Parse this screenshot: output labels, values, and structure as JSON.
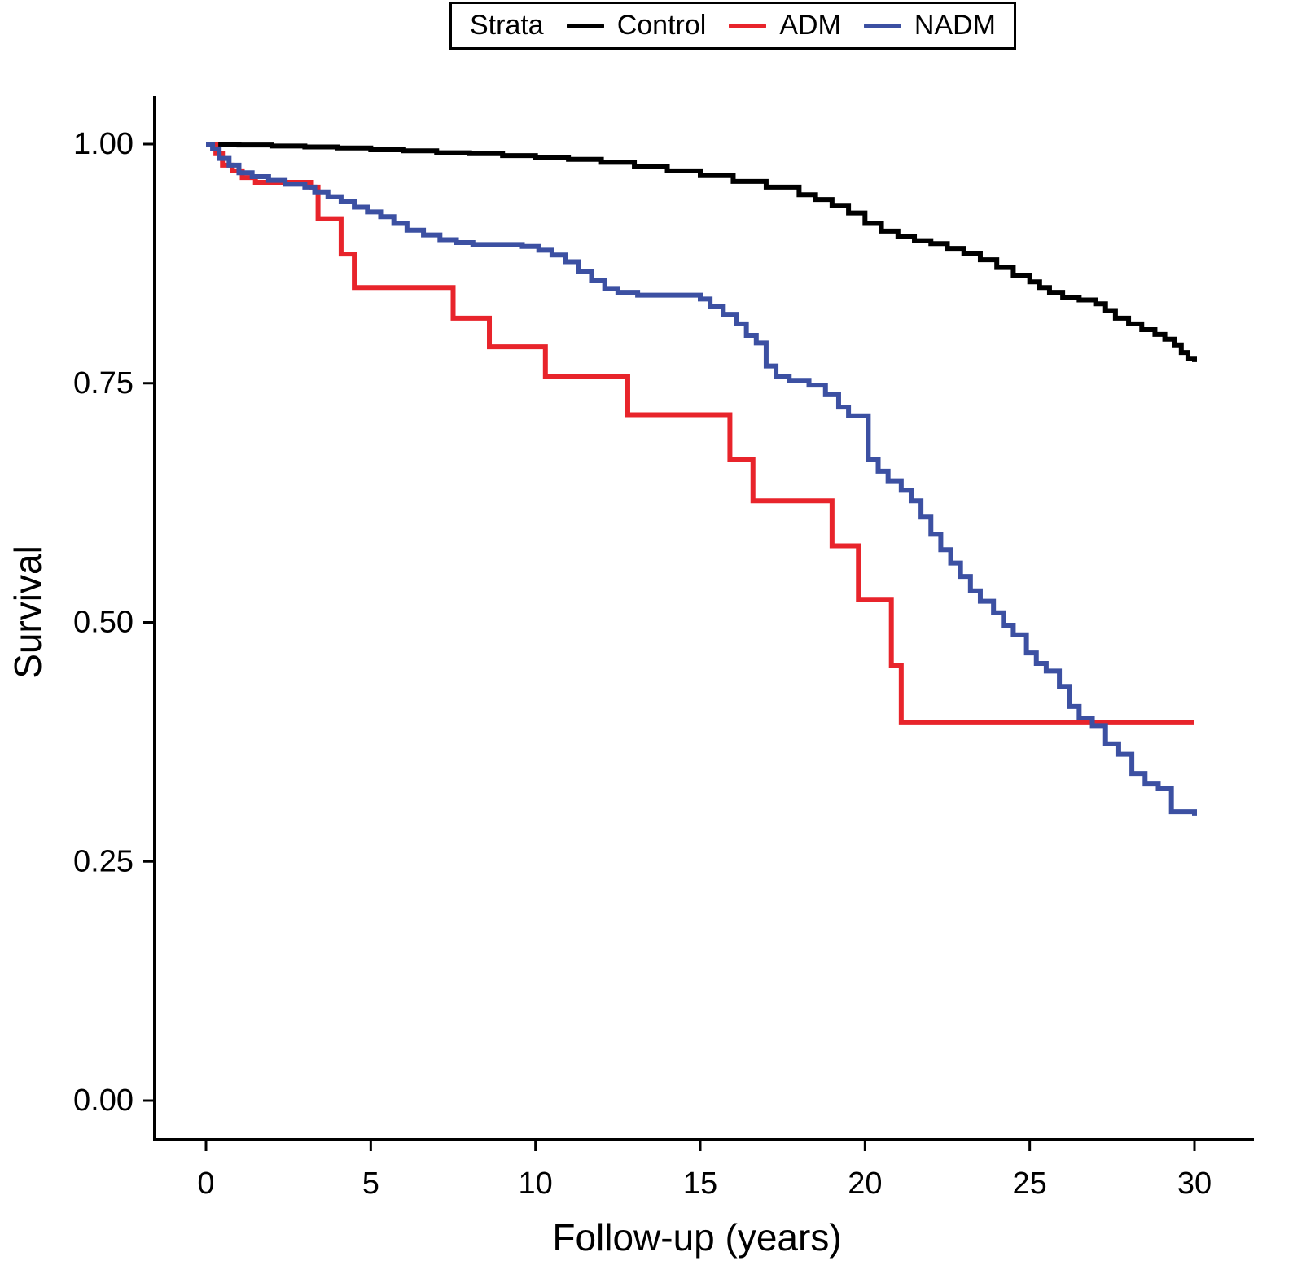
{
  "chart_data": {
    "type": "line",
    "subtype": "kaplan-meier-step",
    "legend_title": "Strata",
    "legend_position": "top",
    "xlabel": "Follow-up (years)",
    "ylabel": "Survival",
    "xlim": [
      0,
      30
    ],
    "ylim": [
      0,
      1
    ],
    "grid": false,
    "x_ticks": [
      {
        "value": 0,
        "label": "0"
      },
      {
        "value": 5,
        "label": "5"
      },
      {
        "value": 10,
        "label": "10"
      },
      {
        "value": 15,
        "label": "15"
      },
      {
        "value": 20,
        "label": "20"
      },
      {
        "value": 25,
        "label": "25"
      },
      {
        "value": 30,
        "label": "30"
      }
    ],
    "y_ticks": [
      {
        "value": 0.0,
        "label": "0.00"
      },
      {
        "value": 0.25,
        "label": "0.25"
      },
      {
        "value": 0.5,
        "label": "0.50"
      },
      {
        "value": 0.75,
        "label": "0.75"
      },
      {
        "value": 1.0,
        "label": "1.00"
      }
    ],
    "series": [
      {
        "name": "Control",
        "color": "#000000",
        "step": true,
        "points": [
          [
            0,
            1.0
          ],
          [
            1,
            0.999
          ],
          [
            2,
            0.998
          ],
          [
            3,
            0.997
          ],
          [
            4,
            0.996
          ],
          [
            5,
            0.994
          ],
          [
            6,
            0.993
          ],
          [
            7,
            0.991
          ],
          [
            8,
            0.99
          ],
          [
            9,
            0.988
          ],
          [
            10,
            0.986
          ],
          [
            11,
            0.984
          ],
          [
            12,
            0.981
          ],
          [
            13,
            0.977
          ],
          [
            14,
            0.972
          ],
          [
            15,
            0.967
          ],
          [
            16,
            0.961
          ],
          [
            17,
            0.955
          ],
          [
            18,
            0.947
          ],
          [
            18.5,
            0.942
          ],
          [
            19,
            0.936
          ],
          [
            19.5,
            0.928
          ],
          [
            20,
            0.917
          ],
          [
            20.5,
            0.909
          ],
          [
            21,
            0.903
          ],
          [
            21.5,
            0.899
          ],
          [
            22,
            0.896
          ],
          [
            22.5,
            0.891
          ],
          [
            23,
            0.886
          ],
          [
            23.5,
            0.879
          ],
          [
            24,
            0.871
          ],
          [
            24.5,
            0.863
          ],
          [
            25,
            0.856
          ],
          [
            25.3,
            0.85
          ],
          [
            25.6,
            0.845
          ],
          [
            26,
            0.84
          ],
          [
            26.5,
            0.837
          ],
          [
            27,
            0.833
          ],
          [
            27.3,
            0.826
          ],
          [
            27.6,
            0.818
          ],
          [
            28,
            0.812
          ],
          [
            28.4,
            0.806
          ],
          [
            28.8,
            0.801
          ],
          [
            29.1,
            0.796
          ],
          [
            29.4,
            0.79
          ],
          [
            29.6,
            0.782
          ],
          [
            29.8,
            0.776
          ],
          [
            30,
            0.772
          ]
        ]
      },
      {
        "name": "ADM",
        "color": "#E8242B",
        "step": true,
        "points": [
          [
            0,
            1.0
          ],
          [
            0.3,
            0.99
          ],
          [
            0.5,
            0.978
          ],
          [
            0.8,
            0.972
          ],
          [
            1.1,
            0.965
          ],
          [
            1.5,
            0.96
          ],
          [
            3.2,
            0.955
          ],
          [
            3.4,
            0.922
          ],
          [
            4.1,
            0.885
          ],
          [
            4.5,
            0.85
          ],
          [
            7.5,
            0.818
          ],
          [
            8.6,
            0.788
          ],
          [
            10.3,
            0.757
          ],
          [
            12.8,
            0.717
          ],
          [
            15.9,
            0.67
          ],
          [
            16.6,
            0.627
          ],
          [
            19.0,
            0.58
          ],
          [
            19.8,
            0.524
          ],
          [
            20.8,
            0.455
          ],
          [
            21.1,
            0.395
          ],
          [
            30,
            0.395
          ]
        ]
      },
      {
        "name": "NADM",
        "color": "#3C50A2",
        "step": true,
        "points": [
          [
            0,
            1.0
          ],
          [
            0.2,
            0.995
          ],
          [
            0.4,
            0.985
          ],
          [
            0.7,
            0.978
          ],
          [
            1.0,
            0.97
          ],
          [
            1.4,
            0.966
          ],
          [
            1.9,
            0.962
          ],
          [
            2.4,
            0.958
          ],
          [
            3.0,
            0.955
          ],
          [
            3.3,
            0.95
          ],
          [
            3.7,
            0.945
          ],
          [
            4.1,
            0.94
          ],
          [
            4.5,
            0.934
          ],
          [
            4.9,
            0.929
          ],
          [
            5.3,
            0.924
          ],
          [
            5.7,
            0.917
          ],
          [
            6.1,
            0.91
          ],
          [
            6.6,
            0.905
          ],
          [
            7.1,
            0.9
          ],
          [
            7.6,
            0.897
          ],
          [
            8.1,
            0.895
          ],
          [
            9.6,
            0.893
          ],
          [
            10.1,
            0.889
          ],
          [
            10.5,
            0.884
          ],
          [
            10.9,
            0.877
          ],
          [
            11.3,
            0.867
          ],
          [
            11.7,
            0.857
          ],
          [
            12.1,
            0.849
          ],
          [
            12.5,
            0.845
          ],
          [
            13.1,
            0.842
          ],
          [
            15.0,
            0.838
          ],
          [
            15.3,
            0.83
          ],
          [
            15.7,
            0.822
          ],
          [
            16.1,
            0.812
          ],
          [
            16.4,
            0.8
          ],
          [
            16.7,
            0.792
          ],
          [
            17.0,
            0.768
          ],
          [
            17.3,
            0.757
          ],
          [
            17.7,
            0.753
          ],
          [
            18.3,
            0.748
          ],
          [
            18.8,
            0.738
          ],
          [
            19.2,
            0.725
          ],
          [
            19.5,
            0.716
          ],
          [
            20.1,
            0.67
          ],
          [
            20.4,
            0.658
          ],
          [
            20.7,
            0.648
          ],
          [
            21.1,
            0.638
          ],
          [
            21.4,
            0.627
          ],
          [
            21.7,
            0.61
          ],
          [
            22.0,
            0.592
          ],
          [
            22.3,
            0.576
          ],
          [
            22.6,
            0.562
          ],
          [
            22.9,
            0.548
          ],
          [
            23.2,
            0.533
          ],
          [
            23.5,
            0.522
          ],
          [
            23.9,
            0.51
          ],
          [
            24.2,
            0.497
          ],
          [
            24.5,
            0.487
          ],
          [
            24.9,
            0.468
          ],
          [
            25.2,
            0.457
          ],
          [
            25.5,
            0.449
          ],
          [
            25.9,
            0.433
          ],
          [
            26.2,
            0.412
          ],
          [
            26.5,
            0.4
          ],
          [
            26.9,
            0.392
          ],
          [
            27.3,
            0.373
          ],
          [
            27.7,
            0.362
          ],
          [
            28.1,
            0.342
          ],
          [
            28.5,
            0.331
          ],
          [
            28.9,
            0.326
          ],
          [
            29.3,
            0.302
          ],
          [
            30,
            0.298
          ]
        ]
      }
    ]
  }
}
